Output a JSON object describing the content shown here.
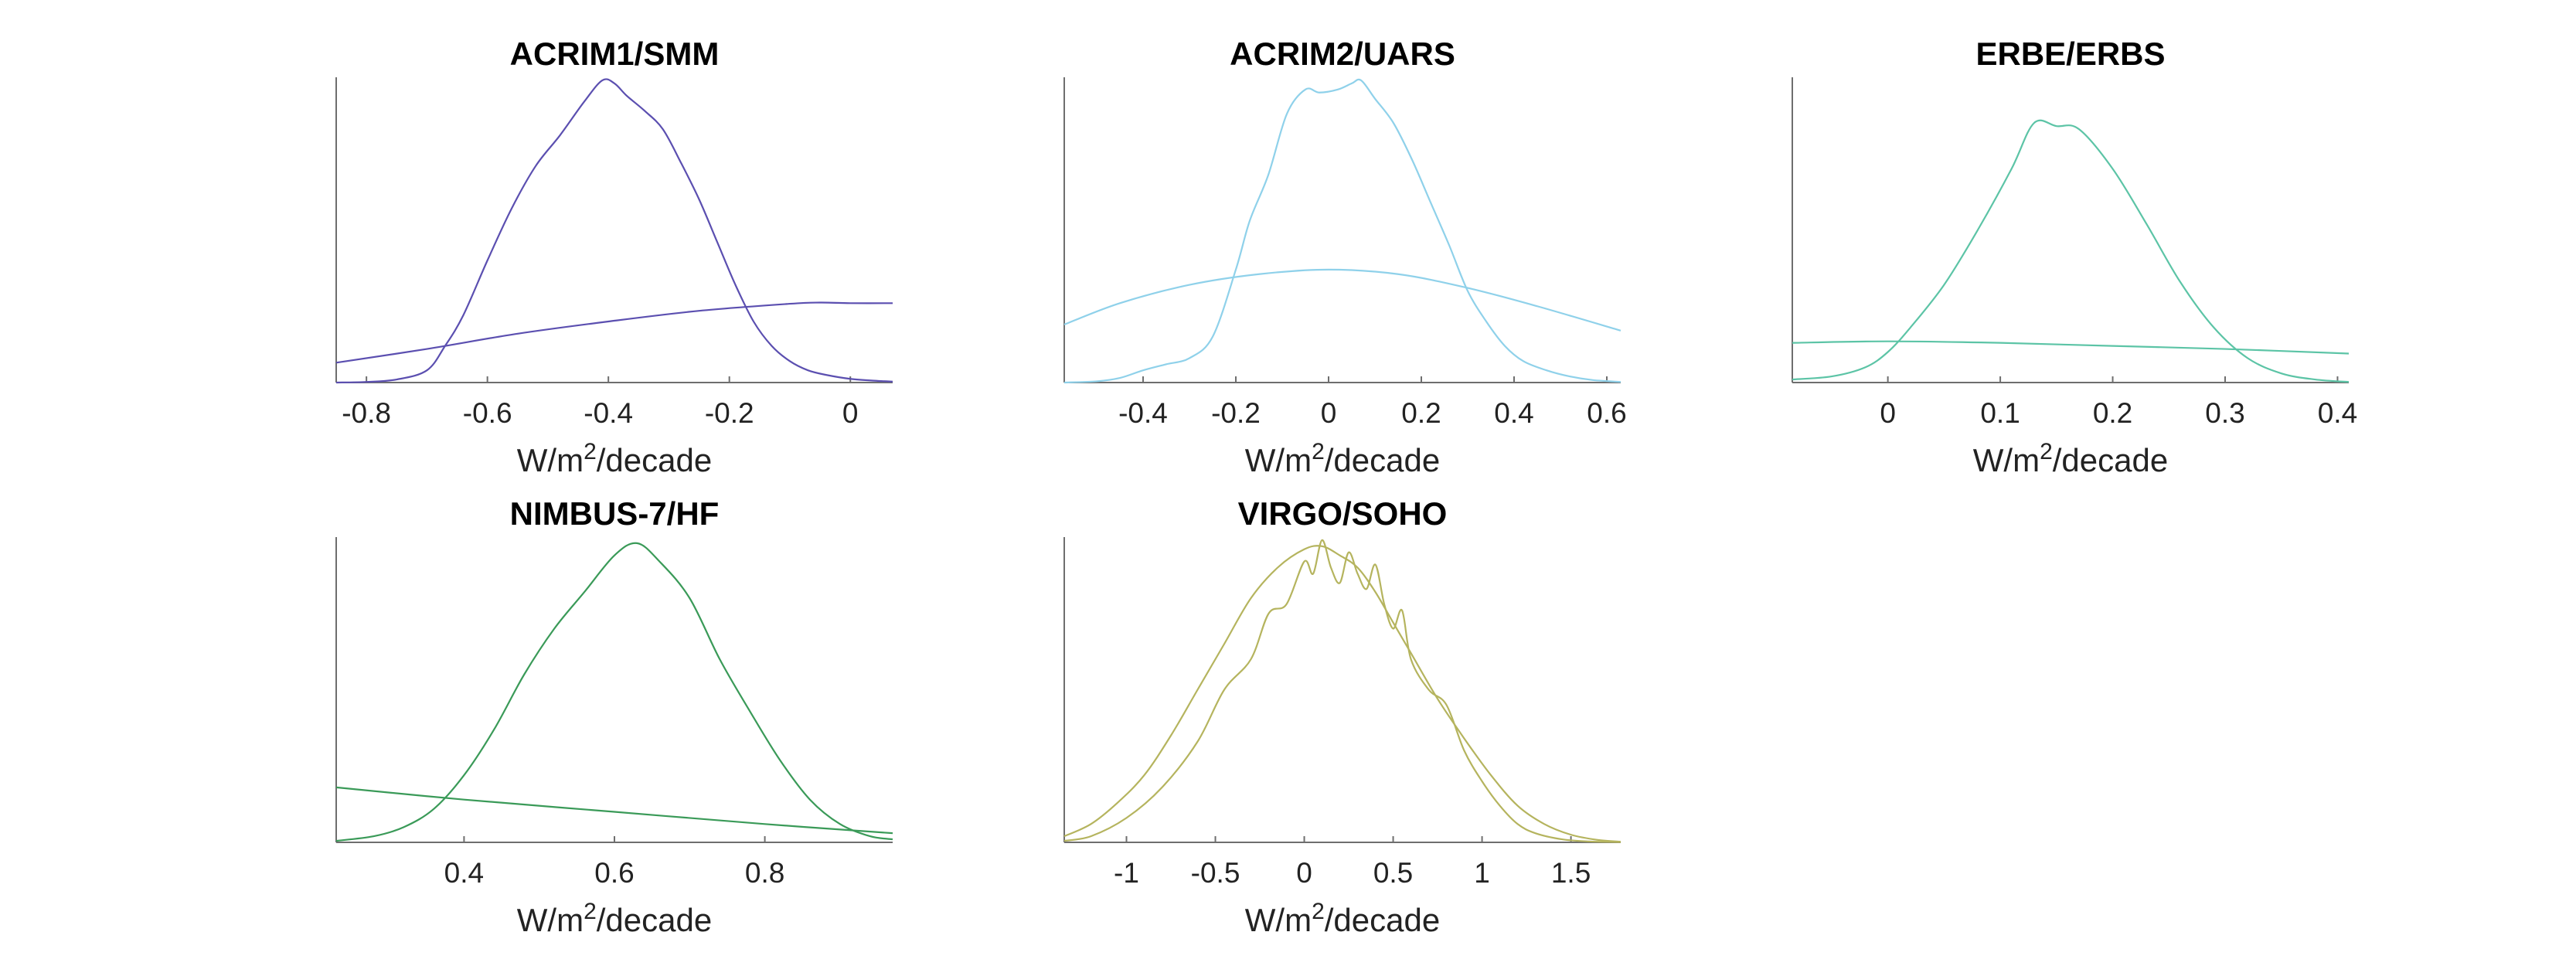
{
  "chart_data": [
    {
      "type": "line",
      "title": "ACRIM1/SMM",
      "xlabel": "W/m2/decade",
      "xlim": [
        -0.85,
        0.07
      ],
      "xticks": [
        -0.8,
        -0.6,
        -0.4,
        -0.2,
        0
      ],
      "xtick_labels": [
        "-0.8",
        "-0.6",
        "-0.4",
        "-0.2",
        "0"
      ],
      "ylim": [
        0,
        1
      ],
      "color": "#5b4fb0",
      "series": [
        {
          "x": [
            -0.85,
            -0.8,
            -0.75,
            -0.7,
            -0.67,
            -0.64,
            -0.6,
            -0.56,
            -0.52,
            -0.48,
            -0.44,
            -0.41,
            -0.39,
            -0.37,
            -0.34,
            -0.31,
            -0.28,
            -0.25,
            -0.22,
            -0.19,
            -0.16,
            -0.13,
            -0.1,
            -0.07,
            -0.04,
            0,
            0.04,
            0.07
          ],
          "y": [
            0,
            0.002,
            0.01,
            0.04,
            0.12,
            0.22,
            0.4,
            0.57,
            0.71,
            0.81,
            0.92,
            0.99,
            0.98,
            0.94,
            0.89,
            0.83,
            0.72,
            0.6,
            0.46,
            0.32,
            0.2,
            0.12,
            0.07,
            0.04,
            0.025,
            0.012,
            0.006,
            0.003
          ]
        },
        {
          "x": [
            -0.85,
            -0.7,
            -0.55,
            -0.4,
            -0.25,
            -0.1,
            -0.05,
            0,
            0.07
          ],
          "y": [
            0.065,
            0.11,
            0.16,
            0.2,
            0.235,
            0.258,
            0.262,
            0.26,
            0.26
          ]
        }
      ]
    },
    {
      "type": "line",
      "title": "ACRIM2/UARS",
      "xlabel": "W/m2/decade",
      "xlim": [
        -0.57,
        0.63
      ],
      "xticks": [
        -0.4,
        -0.2,
        0,
        0.2,
        0.4,
        0.6
      ],
      "xtick_labels": [
        "-0.4",
        "-0.2",
        "0",
        "0.2",
        "0.4",
        "0.6"
      ],
      "ylim": [
        0,
        1
      ],
      "color": "#8fd1ea",
      "series": [
        {
          "x": [
            -0.57,
            -0.5,
            -0.45,
            -0.4,
            -0.35,
            -0.3,
            -0.25,
            -0.2,
            -0.17,
            -0.13,
            -0.09,
            -0.05,
            -0.02,
            0.02,
            0.05,
            0.07,
            0.1,
            0.14,
            0.18,
            0.22,
            0.26,
            0.3,
            0.34,
            0.38,
            0.42,
            0.47,
            0.52,
            0.57,
            0.63
          ],
          "y": [
            0,
            0.004,
            0.015,
            0.04,
            0.06,
            0.08,
            0.15,
            0.37,
            0.53,
            0.68,
            0.88,
            0.96,
            0.95,
            0.96,
            0.98,
            0.99,
            0.93,
            0.85,
            0.73,
            0.59,
            0.45,
            0.3,
            0.2,
            0.12,
            0.07,
            0.04,
            0.02,
            0.008,
            0.002
          ]
        },
        {
          "x": [
            -0.57,
            -0.45,
            -0.3,
            -0.15,
            0,
            0.15,
            0.3,
            0.45,
            0.63
          ],
          "y": [
            0.19,
            0.26,
            0.32,
            0.355,
            0.37,
            0.355,
            0.31,
            0.25,
            0.17
          ]
        }
      ]
    },
    {
      "type": "line",
      "title": "ERBE/ERBS",
      "xlabel": "W/m2/decade",
      "xlim": [
        -0.085,
        0.41
      ],
      "xticks": [
        0,
        0.1,
        0.2,
        0.3,
        0.4
      ],
      "xtick_labels": [
        "0",
        "0.1",
        "0.2",
        "0.3",
        "0.4"
      ],
      "ylim": [
        0,
        1
      ],
      "color": "#5cc4a6",
      "series": [
        {
          "x": [
            -0.085,
            -0.05,
            -0.02,
            0,
            0.02,
            0.05,
            0.08,
            0.11,
            0.13,
            0.15,
            0.17,
            0.2,
            0.23,
            0.26,
            0.29,
            0.32,
            0.35,
            0.38,
            0.41
          ],
          "y": [
            0.01,
            0.02,
            0.05,
            0.1,
            0.18,
            0.32,
            0.5,
            0.7,
            0.85,
            0.84,
            0.83,
            0.7,
            0.52,
            0.33,
            0.18,
            0.08,
            0.03,
            0.01,
            0.002
          ]
        },
        {
          "x": [
            -0.085,
            0,
            0.1,
            0.2,
            0.3,
            0.41
          ],
          "y": [
            0.13,
            0.135,
            0.13,
            0.12,
            0.11,
            0.095
          ]
        }
      ]
    },
    {
      "type": "line",
      "title": "NIMBUS-7/HF",
      "xlabel": "W/m2/decade",
      "xlim": [
        0.23,
        0.97
      ],
      "xticks": [
        0.4,
        0.6,
        0.8
      ],
      "xtick_labels": [
        "0.4",
        "0.6",
        "0.8"
      ],
      "ylim": [
        0,
        1
      ],
      "color": "#3a9a58",
      "series": [
        {
          "x": [
            0.23,
            0.28,
            0.32,
            0.36,
            0.4,
            0.44,
            0.48,
            0.52,
            0.56,
            0.6,
            0.63,
            0.66,
            0.7,
            0.74,
            0.78,
            0.82,
            0.86,
            0.9,
            0.94,
            0.97
          ],
          "y": [
            0.005,
            0.02,
            0.05,
            0.11,
            0.22,
            0.37,
            0.55,
            0.7,
            0.82,
            0.94,
            0.98,
            0.92,
            0.8,
            0.6,
            0.43,
            0.27,
            0.14,
            0.06,
            0.02,
            0.01
          ]
        },
        {
          "x": [
            0.23,
            0.4,
            0.6,
            0.8,
            0.97
          ],
          "y": [
            0.18,
            0.14,
            0.1,
            0.06,
            0.03
          ]
        }
      ]
    },
    {
      "type": "line",
      "title": "VIRGO/SOHO",
      "xlabel": "W/m2/decade",
      "xlim": [
        -1.35,
        1.78
      ],
      "xticks": [
        -1,
        -0.5,
        0,
        0.5,
        1,
        1.5
      ],
      "xtick_labels": [
        "-1",
        "-0.5",
        "0",
        "0.5",
        "1",
        "1.5"
      ],
      "ylim": [
        0,
        1
      ],
      "color": "#b5b45e",
      "series": [
        {
          "x": [
            -1.35,
            -1.2,
            -1.05,
            -0.9,
            -0.75,
            -0.6,
            -0.45,
            -0.3,
            -0.15,
            0,
            0.1,
            0.2,
            0.3,
            0.4,
            0.5,
            0.6,
            0.75,
            0.9,
            1.05,
            1.2,
            1.35,
            1.5,
            1.65,
            1.78
          ],
          "y": [
            0.02,
            0.06,
            0.13,
            0.22,
            0.35,
            0.5,
            0.65,
            0.8,
            0.9,
            0.96,
            0.97,
            0.94,
            0.9,
            0.82,
            0.72,
            0.62,
            0.47,
            0.34,
            0.22,
            0.12,
            0.06,
            0.025,
            0.008,
            0.002
          ]
        },
        {
          "x": [
            -1.35,
            -1.2,
            -1,
            -0.8,
            -0.6,
            -0.45,
            -0.3,
            -0.2,
            -0.1,
            0,
            0.05,
            0.1,
            0.15,
            0.2,
            0.25,
            0.3,
            0.35,
            0.4,
            0.45,
            0.5,
            0.55,
            0.6,
            0.7,
            0.8,
            0.9,
            1,
            1.1,
            1.2,
            1.3,
            1.45,
            1.6,
            1.78
          ],
          "y": [
            0.005,
            0.02,
            0.08,
            0.18,
            0.33,
            0.5,
            0.6,
            0.75,
            0.78,
            0.92,
            0.88,
            0.99,
            0.9,
            0.85,
            0.95,
            0.88,
            0.83,
            0.91,
            0.78,
            0.7,
            0.76,
            0.6,
            0.5,
            0.45,
            0.3,
            0.2,
            0.12,
            0.06,
            0.03,
            0.01,
            0.003,
            0.001
          ]
        }
      ]
    }
  ]
}
